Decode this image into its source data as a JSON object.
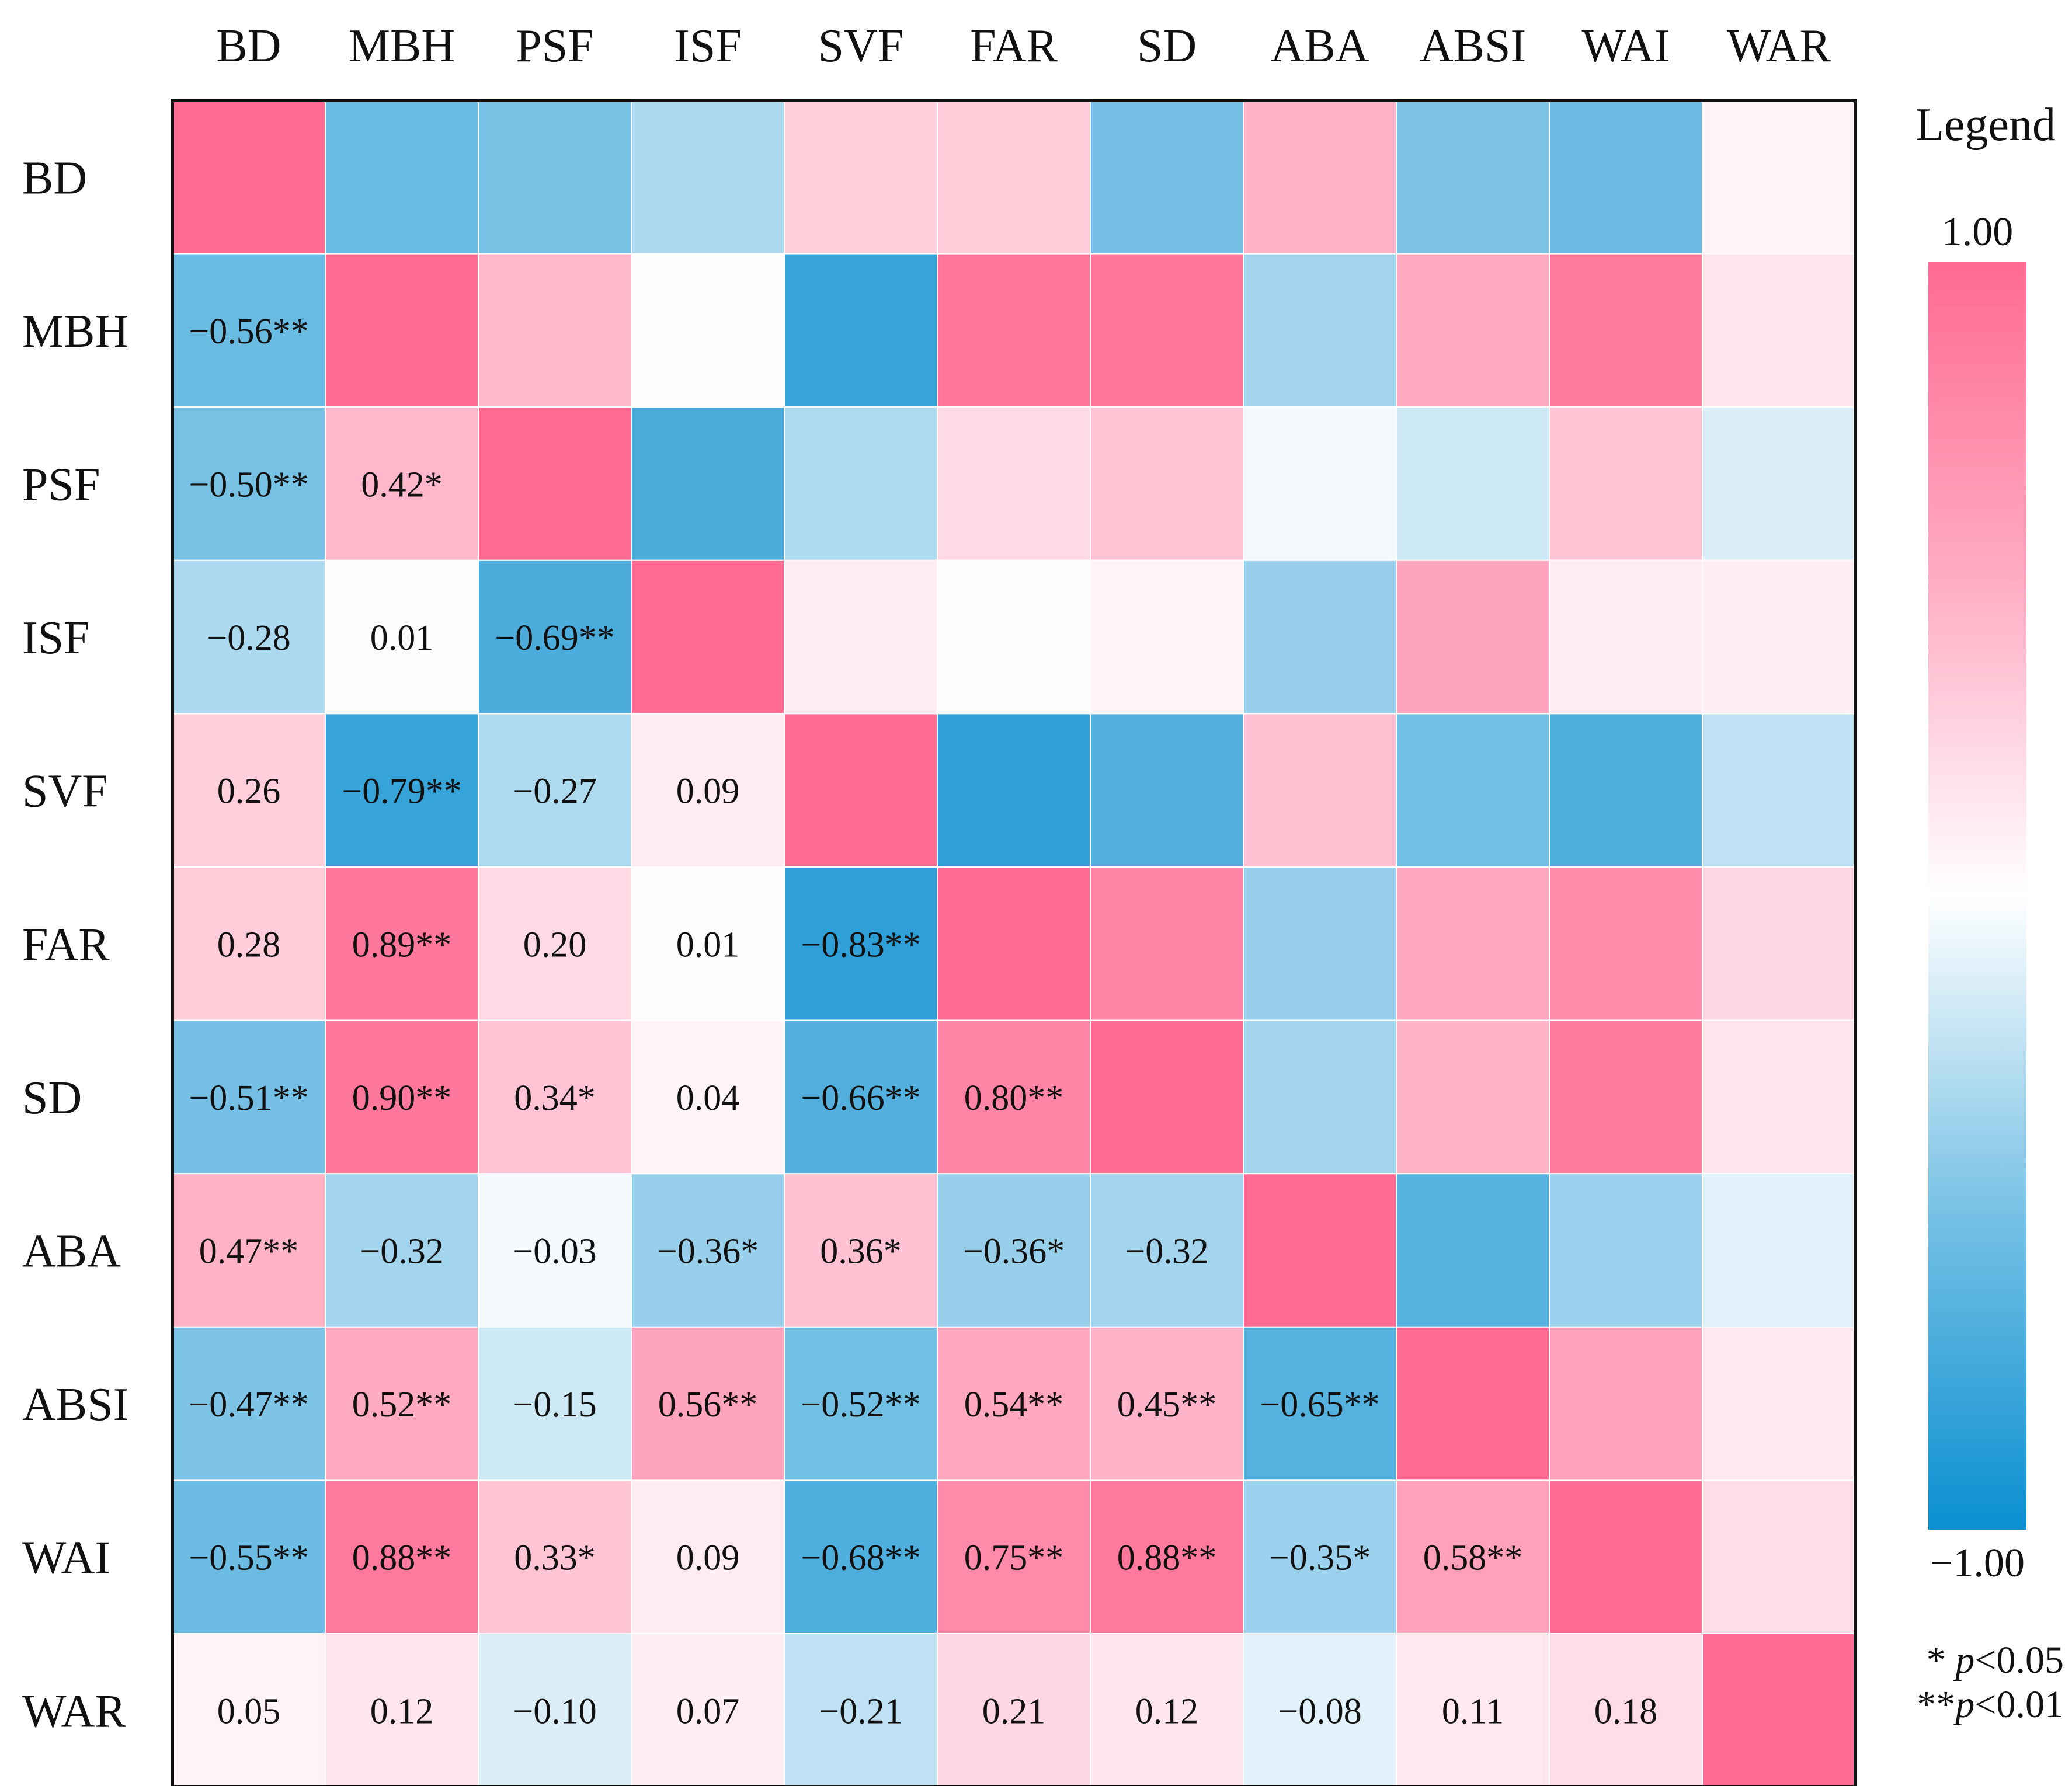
{
  "chart_data": {
    "type": "heatmap",
    "title": "",
    "variables": [
      "BD",
      "MBH",
      "PSF",
      "ISF",
      "SVF",
      "FAR",
      "SD",
      "ABA",
      "ABSI",
      "WAI",
      "WAR"
    ],
    "lower_triangle_labels": [
      [],
      [
        "−0.56**"
      ],
      [
        "−0.50**",
        "0.42*"
      ],
      [
        "−0.28",
        "0.01",
        "−0.69**"
      ],
      [
        "0.26",
        "−0.79**",
        "−0.27",
        "0.09"
      ],
      [
        "0.28",
        "0.89**",
        "0.20",
        "0.01",
        "−0.83**"
      ],
      [
        "−0.51**",
        "0.90**",
        "0.34*",
        "0.04",
        "−0.66**",
        "0.80**"
      ],
      [
        "0.47**",
        "−0.32",
        "−0.03",
        "−0.36*",
        "0.36*",
        "−0.36*",
        "−0.32"
      ],
      [
        "−0.47**",
        "0.52**",
        "−0.15",
        "0.56**",
        "−0.52**",
        "0.54**",
        "0.45**",
        "−0.65**"
      ],
      [
        "−0.55**",
        "0.88**",
        "0.33*",
        "0.09",
        "−0.68**",
        "0.75**",
        "0.88**",
        "−0.35*",
        "0.58**"
      ],
      [
        "0.05",
        "0.12",
        "−0.10",
        "0.07",
        "−0.21",
        "0.21",
        "0.12",
        "−0.08",
        "0.11",
        "0.18"
      ]
    ],
    "correlation_matrix": [
      [
        1.0,
        -0.56,
        -0.5,
        -0.28,
        0.26,
        0.28,
        -0.51,
        0.47,
        -0.47,
        -0.55,
        0.05
      ],
      [
        -0.56,
        1.0,
        0.42,
        0.01,
        -0.79,
        0.89,
        0.9,
        -0.32,
        0.52,
        0.88,
        0.12
      ],
      [
        -0.5,
        0.42,
        1.0,
        -0.69,
        -0.27,
        0.2,
        0.34,
        -0.03,
        -0.15,
        0.33,
        -0.1
      ],
      [
        -0.28,
        0.01,
        -0.69,
        1.0,
        0.09,
        0.01,
        0.04,
        -0.36,
        0.56,
        0.09,
        0.07
      ],
      [
        0.26,
        -0.79,
        -0.27,
        0.09,
        1.0,
        -0.83,
        -0.66,
        0.36,
        -0.52,
        -0.68,
        -0.21
      ],
      [
        0.28,
        0.89,
        0.2,
        0.01,
        -0.83,
        1.0,
        0.8,
        -0.36,
        0.54,
        0.75,
        0.21
      ],
      [
        -0.51,
        0.9,
        0.34,
        0.04,
        -0.66,
        0.8,
        1.0,
        -0.32,
        0.45,
        0.88,
        0.12
      ],
      [
        0.47,
        -0.32,
        -0.03,
        -0.36,
        0.36,
        -0.36,
        -0.32,
        1.0,
        -0.65,
        -0.35,
        -0.08
      ],
      [
        -0.47,
        0.52,
        -0.15,
        0.56,
        -0.52,
        0.54,
        0.45,
        -0.65,
        1.0,
        0.58,
        0.11
      ],
      [
        -0.55,
        0.88,
        0.33,
        0.09,
        -0.68,
        0.75,
        0.88,
        -0.35,
        0.58,
        1.0,
        0.18
      ],
      [
        0.05,
        0.12,
        -0.1,
        0.07,
        -0.21,
        0.21,
        0.12,
        -0.08,
        0.11,
        0.18,
        1.0
      ]
    ],
    "upper_triangle_display": "color only",
    "lower_triangle_display": "color with correlation labels",
    "diagonal": 1.0,
    "color_scale": {
      "min": -1.0,
      "max": 1.0,
      "min_label": "−1.00",
      "max_label": "1.00",
      "negative_color": "#0a8fd0",
      "mid_color": "#ffffff",
      "positive_color": "#ff6a92"
    },
    "legend_title": "Legend",
    "legend_position": "right",
    "significance_notes": [
      {
        "marker": "* ",
        "p": "p",
        "text": "<0.05"
      },
      {
        "marker": "**",
        "p": "p",
        "text": "<0.01"
      }
    ]
  }
}
